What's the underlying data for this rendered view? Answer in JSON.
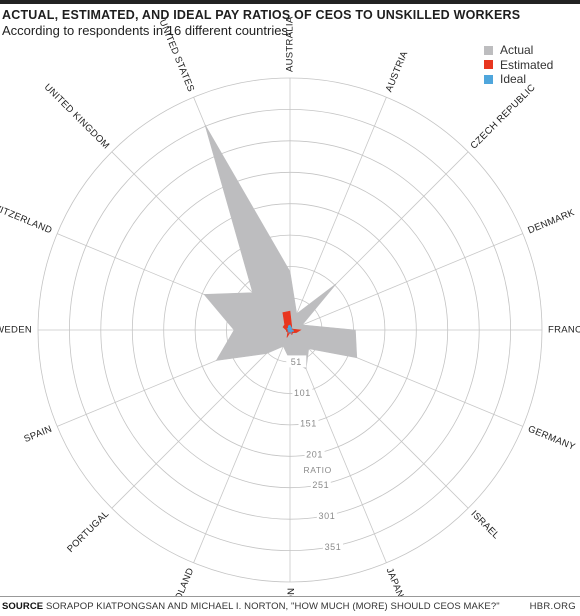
{
  "header": {
    "title": "ACTUAL, ESTIMATED, AND IDEAL PAY RATIOS OF CEOS TO UNSKILLED WORKERS",
    "subtitle": "According to respondents in 16 different countries."
  },
  "footer": {
    "source_label": "SOURCE",
    "source_text": "SORAPOP KIATPONGSAN AND MICHAEL I. NORTON, \"HOW MUCH (MORE) SHOULD CEOS MAKE?\"",
    "credit": "HBR.ORG"
  },
  "chart_data": {
    "type": "radar",
    "title": "ACTUAL, ESTIMATED, AND IDEAL PAY RATIOS OF CEOS TO UNSKILLED WORKERS",
    "subtitle": "According to respondents in 16 different countries.",
    "axis_label": "RATIO",
    "rmax": 401,
    "ring_values": [
      1,
      51,
      101,
      151,
      201,
      251,
      301,
      351,
      401
    ],
    "tick_labels": [
      "51",
      "101",
      "151",
      "201",
      "251",
      "301",
      "351"
    ],
    "grid": true,
    "legend_position": "top-right",
    "categories": [
      "AUSTRALIA",
      "AUSTRIA",
      "CZECH REPUBLIC",
      "DENMARK",
      "FRANCE",
      "GERMANY",
      "ISRAEL",
      "JAPAN",
      "NORWAY",
      "POLAND",
      "PORTUGAL",
      "SPAIN",
      "SWEDEN",
      "SWITZERLAND",
      "UNITED KINGDOM",
      "UNITED STATES"
    ],
    "series": [
      {
        "name": "Actual",
        "color": "#bdbdbf",
        "values": [
          93,
          28,
          104,
          21,
          104,
          115,
          42,
          67,
          48,
          28,
          53,
          127,
          89,
          148,
          84,
          354
        ]
      },
      {
        "name": "Estimated",
        "color": "#e8361f",
        "values": [
          30,
          7,
          4,
          4,
          17,
          11,
          6,
          8,
          4,
          13,
          5,
          6,
          6,
          12,
          12,
          30
        ]
      },
      {
        "name": "Ideal",
        "color": "#4fa6dc",
        "values": [
          8,
          5,
          4,
          2,
          5,
          6,
          3,
          6,
          2,
          5,
          3,
          4,
          2,
          5,
          4,
          7
        ]
      }
    ]
  }
}
